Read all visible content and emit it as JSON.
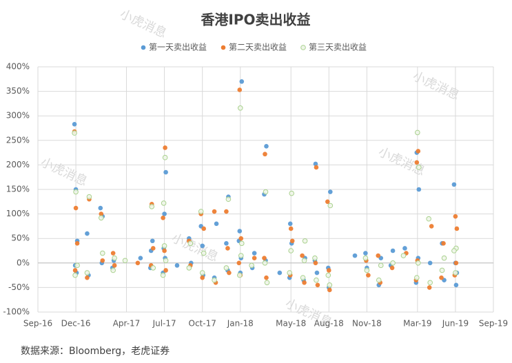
{
  "chart_data": {
    "type": "scatter",
    "title": "香港IPO卖出收益",
    "source": "数据来源：Bloomberg，老虎证券",
    "watermark": "小虎消息",
    "legend": "top",
    "grid": true,
    "xlim": [
      "2016-09",
      "2019-09"
    ],
    "xticks": [
      {
        "value": "2016-09",
        "label": "Sep-16"
      },
      {
        "value": "2016-12",
        "label": "Dec-16"
      },
      {
        "value": "2017-04",
        "label": "Apr-17"
      },
      {
        "value": "2017-07",
        "label": "Jul-17"
      },
      {
        "value": "2017-10",
        "label": "Oct-17"
      },
      {
        "value": "2018-01",
        "label": "Jan-18"
      },
      {
        "value": "2018-05",
        "label": "May-18"
      },
      {
        "value": "2018-08",
        "label": "Aug-18"
      },
      {
        "value": "2018-11",
        "label": "Nov-18"
      },
      {
        "value": "2019-03",
        "label": "Mar-19"
      },
      {
        "value": "2019-06",
        "label": "Jun-19"
      },
      {
        "value": "2019-09",
        "label": "Sep-19"
      }
    ],
    "ylim": [
      -100,
      400
    ],
    "yticks": [
      {
        "value": -100,
        "label": "-100%"
      },
      {
        "value": -50,
        "label": "-50%"
      },
      {
        "value": 0,
        "label": "0%"
      },
      {
        "value": 50,
        "label": "50%"
      },
      {
        "value": 100,
        "label": "100%"
      },
      {
        "value": 150,
        "label": "150%"
      },
      {
        "value": 200,
        "label": "200%"
      },
      {
        "value": 250,
        "label": "250%"
      },
      {
        "value": 300,
        "label": "300%"
      },
      {
        "value": 350,
        "label": "350%"
      },
      {
        "value": 400,
        "label": "400%"
      }
    ],
    "series": [
      {
        "name": "第一天卖出收益",
        "color": "#5b9bd5",
        "x": [
          "2016-12",
          "2016-12",
          "2016-12",
          "2016-12",
          "2016-12",
          "2017-01",
          "2017-01",
          "2017-02",
          "2017-02",
          "2017-02",
          "2017-03",
          "2017-03",
          "2017-05",
          "2017-06",
          "2017-06",
          "2017-06",
          "2017-07",
          "2017-07",
          "2017-07",
          "2017-07",
          "2017-07",
          "2017-08",
          "2017-09",
          "2017-09",
          "2017-10",
          "2017-10",
          "2017-10",
          "2017-11",
          "2017-11",
          "2017-12",
          "2017-12",
          "2017-12",
          "2018-01",
          "2018-01",
          "2018-01",
          "2018-01",
          "2018-01",
          "2018-02",
          "2018-02",
          "2018-03",
          "2018-03",
          "2018-03",
          "2018-04",
          "2018-05",
          "2018-05",
          "2018-05",
          "2018-06",
          "2018-06",
          "2018-07",
          "2018-07",
          "2018-07",
          "2018-08",
          "2018-08",
          "2018-08",
          "2018-10",
          "2018-11",
          "2018-11",
          "2018-12",
          "2018-12",
          "2019-01",
          "2019-01",
          "2019-02",
          "2019-03",
          "2019-03",
          "2019-03",
          "2019-03",
          "2019-04",
          "2019-05",
          "2019-05",
          "2019-06",
          "2019-06",
          "2019-06",
          "2019-06"
        ],
        "values": [
          283,
          150,
          45,
          -5,
          -20,
          60,
          -25,
          95,
          112,
          0,
          -10,
          5,
          10,
          25,
          45,
          -10,
          100,
          185,
          30,
          10,
          -20,
          -5,
          0,
          50,
          -25,
          75,
          35,
          80,
          -30,
          135,
          40,
          -15,
          370,
          65,
          10,
          45,
          -20,
          20,
          -10,
          238,
          140,
          5,
          -20,
          80,
          40,
          -30,
          -35,
          10,
          202,
          -20,
          5,
          -50,
          145,
          -10,
          15,
          20,
          -10,
          10,
          -45,
          25,
          -5,
          30,
          150,
          225,
          10,
          -40,
          0,
          -35,
          40,
          -45,
          160,
          0,
          -20
        ]
      },
      {
        "name": "第二天卖出收益",
        "color": "#ed7d31",
        "x": [
          "2016-12",
          "2016-12",
          "2016-12",
          "2016-12",
          "2017-01",
          "2017-01",
          "2017-02",
          "2017-02",
          "2017-03",
          "2017-03",
          "2017-05",
          "2017-06",
          "2017-06",
          "2017-06",
          "2017-07",
          "2017-07",
          "2017-07",
          "2017-07",
          "2017-09",
          "2017-09",
          "2017-10",
          "2017-10",
          "2017-10",
          "2017-11",
          "2017-11",
          "2017-12",
          "2017-12",
          "2017-12",
          "2018-01",
          "2018-01",
          "2018-01",
          "2018-01",
          "2018-02",
          "2018-03",
          "2018-03",
          "2018-03",
          "2018-05",
          "2018-05",
          "2018-05",
          "2018-06",
          "2018-06",
          "2018-07",
          "2018-07",
          "2018-07",
          "2018-08",
          "2018-08",
          "2018-08",
          "2018-11",
          "2018-11",
          "2018-12",
          "2018-12",
          "2019-01",
          "2019-02",
          "2019-03",
          "2019-03",
          "2019-03",
          "2019-03",
          "2019-04",
          "2019-04",
          "2019-05",
          "2019-05",
          "2019-06",
          "2019-06",
          "2019-06",
          "2019-06"
        ],
        "values": [
          268,
          112,
          40,
          -15,
          130,
          -30,
          100,
          5,
          20,
          -5,
          0,
          120,
          30,
          -5,
          235,
          92,
          25,
          -15,
          45,
          -5,
          100,
          -30,
          70,
          105,
          -40,
          105,
          30,
          -20,
          353,
          50,
          0,
          -25,
          10,
          222,
          -30,
          10,
          70,
          45,
          -25,
          -40,
          15,
          195,
          -45,
          0,
          -55,
          125,
          -15,
          -25,
          5,
          -40,
          15,
          -10,
          20,
          205,
          228,
          -35,
          5,
          75,
          -50,
          40,
          -30,
          95,
          70,
          -25,
          0
        ]
      },
      {
        "name": "第三天卖出收益",
        "color": "#a9d18e",
        "x": [
          "2016-12",
          "2016-12",
          "2016-12",
          "2016-12",
          "2017-01",
          "2017-01",
          "2017-02",
          "2017-02",
          "2017-03",
          "2017-03",
          "2017-04",
          "2017-06",
          "2017-06",
          "2017-07",
          "2017-07",
          "2017-07",
          "2017-07",
          "2017-07",
          "2017-09",
          "2017-09",
          "2017-10",
          "2017-10",
          "2017-10",
          "2017-11",
          "2017-12",
          "2017-12",
          "2018-01",
          "2018-01",
          "2018-01",
          "2018-01",
          "2018-02",
          "2018-03",
          "2018-03",
          "2018-03",
          "2018-05",
          "2018-05",
          "2018-05",
          "2018-06",
          "2018-06",
          "2018-06",
          "2018-07",
          "2018-07",
          "2018-08",
          "2018-08",
          "2018-08",
          "2018-11",
          "2018-11",
          "2018-12",
          "2018-12",
          "2019-01",
          "2019-02",
          "2019-03",
          "2019-03",
          "2019-03",
          "2019-03",
          "2019-04",
          "2019-04",
          "2019-05",
          "2019-05",
          "2019-06",
          "2019-06",
          "2019-06"
        ],
        "values": [
          265,
          145,
          -5,
          -25,
          135,
          -20,
          92,
          20,
          -15,
          10,
          5,
          115,
          -10,
          122,
          215,
          -25,
          35,
          5,
          -10,
          40,
          105,
          -20,
          20,
          -35,
          130,
          -10,
          316,
          40,
          -25,
          15,
          -5,
          145,
          -40,
          0,
          142,
          -20,
          25,
          45,
          -30,
          5,
          10,
          -35,
          117,
          -25,
          -45,
          10,
          -15,
          -5,
          -35,
          0,
          15,
          266,
          195,
          -30,
          0,
          90,
          -40,
          10,
          -15,
          30,
          25,
          -20
        ]
      }
    ]
  }
}
